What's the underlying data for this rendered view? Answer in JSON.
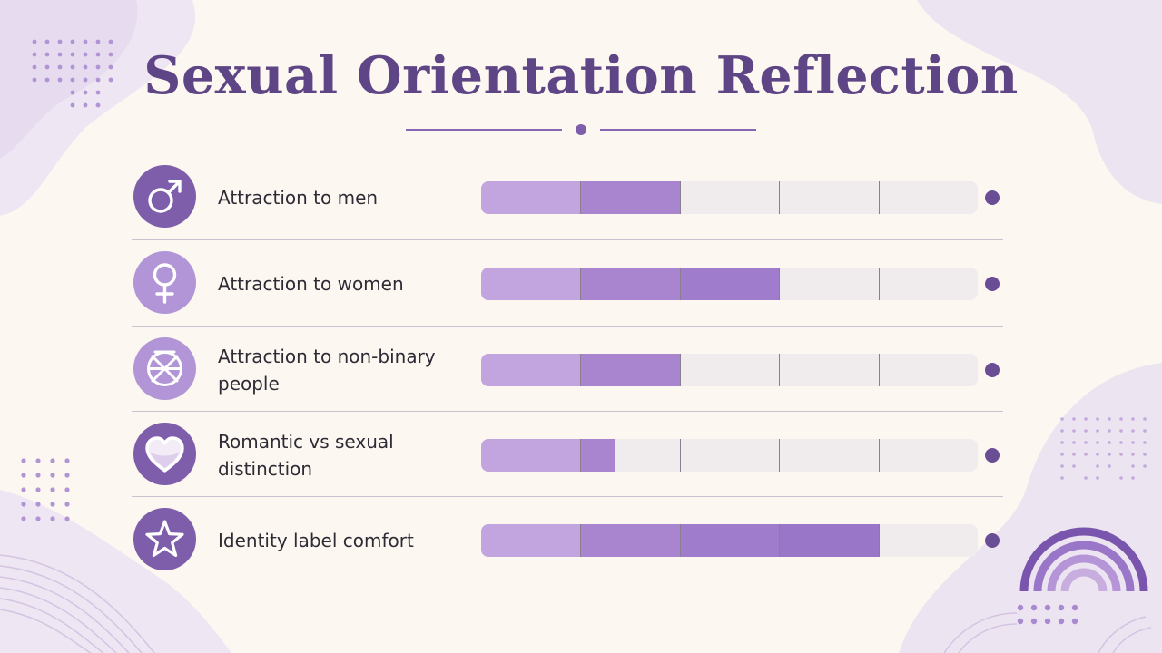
{
  "title": "Sexual Orientation Reflection",
  "colors": {
    "title": "#5e4585",
    "icon_dark": "#7e5eaa",
    "icon_light": "#b195d6",
    "track": "#f0ecee",
    "segments": [
      "#c2a4df",
      "#a985cf",
      "#a07ccc",
      "#9a76c8"
    ],
    "dot": "#6a4e95"
  },
  "scale": {
    "segments": 5
  },
  "rows": [
    {
      "label": "Attraction to men",
      "icon": "male-symbol-icon",
      "icon_tone": "dark",
      "level": 0.4
    },
    {
      "label": "Attraction to women",
      "icon": "female-symbol-icon",
      "icon_tone": "light",
      "level": 0.6
    },
    {
      "label": "Attraction to non-binary people",
      "icon": "non-binary-symbol-icon",
      "icon_tone": "light",
      "level": 0.4
    },
    {
      "label": "Romantic vs sexual distinction",
      "icon": "heart-icon",
      "icon_tone": "dark",
      "level": 0.27
    },
    {
      "label": "Identity label comfort",
      "icon": "star-icon",
      "icon_tone": "dark",
      "level": 0.8
    }
  ]
}
